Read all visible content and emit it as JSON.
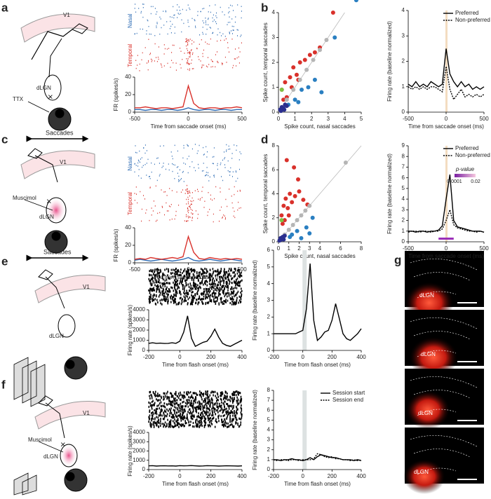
{
  "panel_labels": [
    "a",
    "b",
    "c",
    "d",
    "e",
    "f",
    "g"
  ],
  "diagram_labels": {
    "a": [
      "V1",
      "dLGN",
      "TTX",
      "Saccades"
    ],
    "c": [
      "V1",
      "Muscimol",
      "dLGN",
      "Saccades"
    ],
    "e": [
      "V1",
      "dLGN"
    ],
    "f": [
      "V1",
      "Muscimol",
      "dLGN"
    ]
  },
  "histology_labels": [
    "dLGN",
    "dLGN",
    "dLGN",
    "dLGN"
  ],
  "chart_data": [
    {
      "type": "line",
      "ylabel": "FR (spikes/s)",
      "xlabel": "Time from saccade onset (ms)",
      "annotations": [
        "Nasal",
        "Temporal"
      ],
      "x": [
        -500,
        -450,
        -400,
        -350,
        -300,
        -250,
        -200,
        -150,
        -100,
        -50,
        0,
        50,
        100,
        150,
        200,
        250,
        300,
        350,
        400,
        450,
        500
      ],
      "xlim": [
        -500,
        500
      ],
      "xticks": [
        -500,
        0,
        500
      ],
      "ylim": [
        0,
        40
      ],
      "yticks": [
        0,
        20,
        40
      ],
      "series": [
        {
          "name": "Nasal",
          "color": "#2f6db5",
          "values": [
            3,
            3,
            2,
            3,
            3,
            2,
            3,
            3,
            2,
            3,
            5,
            3,
            2,
            3,
            3,
            2,
            3,
            3,
            2,
            3,
            3
          ]
        },
        {
          "name": "Temporal",
          "color": "#d9312b",
          "values": [
            5,
            5,
            6,
            5,
            4,
            5,
            5,
            4,
            5,
            6,
            30,
            10,
            5,
            4,
            5,
            5,
            4,
            5,
            5,
            6,
            5
          ]
        }
      ]
    },
    {
      "type": "scatter",
      "xlabel": "Spike count, nasal saccades",
      "ylabel": "Spike count, temporal saccades",
      "xlim": [
        0,
        5
      ],
      "xticks": [
        0,
        1,
        2,
        3,
        4,
        5
      ],
      "ylim": [
        0,
        4
      ],
      "yticks": [
        0,
        1,
        2,
        3,
        4
      ],
      "series": [
        {
          "color": "#d9312b",
          "x": [
            0.2,
            0.4,
            0.5,
            0.7,
            0.9,
            1.1,
            1.3,
            1.6,
            1.9,
            2.2,
            2.5,
            3.3,
            0.3,
            0.8,
            1.2
          ],
          "values": [
            0.9,
            1.2,
            0.6,
            1.4,
            1.8,
            1.5,
            2.0,
            2.1,
            2.3,
            2.4,
            2.6,
            4.0,
            0.5,
            1.0,
            1.3
          ]
        },
        {
          "color": "#2a7fc1",
          "x": [
            0.6,
            1.0,
            1.4,
            1.8,
            2.2,
            2.6,
            3.4,
            4.7,
            1.2
          ],
          "values": [
            0.3,
            0.5,
            0.9,
            1.0,
            1.3,
            0.8,
            3.0,
            4.5,
            0.4
          ]
        },
        {
          "color": "#b5b5b5",
          "x": [
            0.5,
            0.9,
            1.3,
            1.7,
            2.1,
            2.5,
            2.9
          ],
          "values": [
            0.5,
            0.9,
            1.3,
            1.7,
            2.1,
            2.5,
            2.9
          ]
        },
        {
          "color": "#7cc242",
          "x": [
            0.2
          ],
          "values": [
            0.9
          ]
        },
        {
          "color": "#2b2f8f",
          "x": [
            0.1,
            0.2,
            0.3,
            0.4,
            0.5,
            0.15,
            0.35
          ],
          "values": [
            0.1,
            0.2,
            0.15,
            0.3,
            0.25,
            0.05,
            0.1
          ]
        }
      ]
    },
    {
      "type": "line",
      "ylabel": "Firing rate (baseline normalized)",
      "xlabel": "Time from saccade onset (ms)",
      "legend": "upper right",
      "x": [
        -500,
        -450,
        -400,
        -350,
        -300,
        -250,
        -200,
        -150,
        -100,
        -50,
        0,
        50,
        100,
        150,
        200,
        250,
        300,
        350,
        400,
        450,
        500
      ],
      "xlim": [
        -500,
        500
      ],
      "xticks": [
        -500,
        0,
        500
      ],
      "ylim": [
        0,
        4
      ],
      "yticks": [
        0,
        1,
        2,
        3,
        4
      ],
      "series": [
        {
          "name": "Preferred",
          "color": "#000000",
          "values": [
            1.1,
            1.0,
            1.2,
            1.0,
            1.1,
            1.0,
            1.2,
            1.1,
            1.0,
            1.1,
            2.5,
            1.5,
            1.2,
            1.0,
            1.2,
            1.0,
            1.1,
            0.9,
            1.0,
            0.9,
            1.0
          ]
        },
        {
          "name": "Non-preferred",
          "color": "#000000",
          "dash": true,
          "values": [
            1.0,
            0.9,
            1.0,
            0.9,
            1.0,
            0.9,
            1.0,
            1.0,
            0.9,
            0.8,
            1.8,
            0.9,
            0.5,
            0.7,
            0.9,
            0.6,
            0.7,
            0.6,
            0.7,
            0.6,
            0.7
          ]
        }
      ]
    },
    {
      "type": "line",
      "ylabel": "FR (spikes/s)",
      "xlabel": "Time from saccade onset (ms)",
      "annotations": [
        "Nasal",
        "Temporal"
      ],
      "x": [
        -500,
        -450,
        -400,
        -350,
        -300,
        -250,
        -200,
        -150,
        -100,
        -50,
        0,
        50,
        100,
        150,
        200,
        250,
        300,
        350,
        400,
        450,
        500
      ],
      "xlim": [
        -500,
        500
      ],
      "xticks": [
        -500,
        0,
        500
      ],
      "ylim": [
        0,
        40
      ],
      "yticks": [
        0,
        20,
        40
      ],
      "series": [
        {
          "name": "Nasal",
          "color": "#2f6db5",
          "values": [
            3,
            4,
            3,
            2,
            3,
            4,
            3,
            2,
            3,
            4,
            6,
            3,
            2,
            3,
            4,
            3,
            2,
            3,
            4,
            3,
            2
          ]
        },
        {
          "name": "Temporal",
          "color": "#d9312b",
          "values": [
            4,
            5,
            4,
            6,
            5,
            4,
            5,
            6,
            5,
            7,
            30,
            12,
            5,
            4,
            6,
            5,
            4,
            5,
            4,
            5,
            4
          ]
        }
      ]
    },
    {
      "type": "scatter",
      "xlabel": "Spike count, nasal saccades",
      "ylabel": "Spike count, temporal saccades",
      "xlim": [
        0,
        8
      ],
      "xticks": [
        0,
        1,
        2,
        3,
        4,
        6,
        8
      ],
      "ylim": [
        0,
        8
      ],
      "yticks": [
        0,
        2,
        4,
        6,
        8
      ],
      "series": [
        {
          "color": "#d9312b",
          "x": [
            0.3,
            0.5,
            0.7,
            0.9,
            1.1,
            1.3,
            1.6,
            2.0,
            2.4,
            0.4,
            0.8,
            1.5,
            1.0,
            2.8,
            1.9,
            0.6
          ],
          "values": [
            2.2,
            3.0,
            3.6,
            2.8,
            4.0,
            3.3,
            3.8,
            4.2,
            3.5,
            1.5,
            6.8,
            6.2,
            2.2,
            3.1,
            5.2,
            1.8
          ]
        },
        {
          "color": "#2a7fc1",
          "x": [
            1.3,
            1.8,
            2.2,
            2.7,
            3.0,
            3.3,
            1.1
          ],
          "values": [
            0.6,
            0.9,
            0.3,
            1.2,
            0.7,
            2.0,
            0.4
          ]
        },
        {
          "color": "#b5b5b5",
          "x": [
            0.6,
            1.0,
            1.4,
            1.8,
            2.2,
            2.6,
            3.0,
            6.5
          ],
          "values": [
            0.6,
            1.0,
            1.4,
            1.8,
            2.2,
            2.6,
            3.0,
            6.6
          ]
        },
        {
          "color": "#7cc242",
          "x": [
            0.3
          ],
          "values": [
            1.8
          ]
        },
        {
          "color": "#2b2f8f",
          "x": [
            0.1,
            0.2,
            0.3,
            0.4,
            0.5,
            0.6
          ],
          "values": [
            0.1,
            0.3,
            0.2,
            0.4,
            0.2,
            0.5
          ]
        }
      ]
    },
    {
      "type": "line",
      "ylabel": "Firing rate (baseline normalized)",
      "xlabel": "Time from saccade onset (ms)",
      "legend": "upper right",
      "colorbar": {
        "label": "p-value",
        "ticks": [
          "0.0001",
          "0.02"
        ]
      },
      "x": [
        -500,
        -450,
        -400,
        -350,
        -300,
        -250,
        -200,
        -150,
        -100,
        -50,
        0,
        50,
        100,
        150,
        200,
        250,
        300,
        350,
        400,
        450,
        500
      ],
      "xlim": [
        -500,
        500
      ],
      "xticks": [
        -500,
        0,
        500
      ],
      "ylim": [
        0,
        9
      ],
      "yticks": [
        0,
        1,
        2,
        3,
        4,
        5,
        6,
        7,
        8,
        9
      ],
      "series": [
        {
          "name": "Preferred",
          "color": "#000000",
          "values": [
            1.0,
            1.0,
            0.9,
            1.0,
            1.0,
            0.9,
            1.0,
            1.0,
            1.1,
            1.5,
            4.0,
            6.3,
            2.0,
            1.4,
            1.3,
            1.2,
            1.1,
            1.0,
            1.0,
            1.0,
            0.9
          ]
        },
        {
          "name": "Non-preferred",
          "color": "#000000",
          "dash": true,
          "values": [
            0.9,
            1.0,
            1.0,
            0.9,
            1.0,
            1.0,
            0.9,
            1.0,
            1.0,
            1.2,
            2.0,
            3.0,
            1.6,
            1.3,
            1.2,
            1.1,
            1.0,
            1.0,
            0.9,
            1.0,
            0.9
          ]
        }
      ]
    },
    {
      "type": "line",
      "ylabel": "Firing rate (spikes/s)",
      "xlabel": "Time from flash onset (ms)",
      "x": [
        -200,
        -175,
        -150,
        -125,
        -100,
        -75,
        -50,
        -25,
        0,
        25,
        50,
        75,
        100,
        125,
        150,
        175,
        200,
        225,
        250,
        275,
        300,
        325,
        350,
        375,
        400
      ],
      "xlim": [
        -200,
        400
      ],
      "xticks": [
        -200,
        0,
        200,
        400
      ],
      "ylim": [
        0,
        4000
      ],
      "yticks": [
        0,
        1000,
        2000,
        3000,
        4000
      ],
      "series": [
        {
          "name": "",
          "color": "#000000",
          "values": [
            700,
            750,
            700,
            720,
            680,
            700,
            750,
            700,
            900,
            1800,
            3400,
            1200,
            400,
            600,
            800,
            900,
            1400,
            2100,
            1300,
            700,
            500,
            400,
            600,
            800,
            1000
          ]
        }
      ]
    },
    {
      "type": "line",
      "ylabel": "Firing rate (baseline normalized)",
      "xlabel": "Time from flash onset (ms)",
      "x": [
        -200,
        -175,
        -150,
        -125,
        -100,
        -75,
        -50,
        -25,
        0,
        25,
        50,
        75,
        100,
        125,
        150,
        175,
        200,
        225,
        250,
        275,
        300,
        325,
        350,
        375,
        400
      ],
      "xlim": [
        -200,
        400
      ],
      "xticks": [
        -200,
        0,
        200,
        400
      ],
      "ylim": [
        0,
        6
      ],
      "yticks": [
        0,
        1,
        2,
        3,
        4,
        5,
        6
      ],
      "series": [
        {
          "name": "",
          "color": "#000000",
          "values": [
            1.0,
            1.0,
            1.0,
            1.0,
            1.0,
            1.0,
            1.0,
            1.1,
            1.2,
            2.5,
            5.2,
            1.8,
            0.6,
            0.8,
            1.1,
            1.2,
            1.8,
            2.8,
            1.9,
            1.0,
            0.7,
            0.6,
            0.8,
            1.0,
            1.3
          ]
        }
      ]
    },
    {
      "type": "line",
      "ylabel": "Firing rate (spikes/s)",
      "xlabel": "Time from flash onset (ms)",
      "x": [
        -200,
        -175,
        -150,
        -125,
        -100,
        -75,
        -50,
        -25,
        0,
        25,
        50,
        75,
        100,
        125,
        150,
        175,
        200,
        225,
        250,
        275,
        300,
        325,
        350,
        375,
        400
      ],
      "xlim": [
        -200,
        400
      ],
      "xticks": [
        -200,
        0,
        200,
        400
      ],
      "ylim": [
        0,
        4000
      ],
      "yticks": [
        0,
        1000,
        2000,
        3000,
        4000
      ],
      "series": [
        {
          "name": "",
          "color": "#000000",
          "values": [
            400,
            420,
            380,
            400,
            410,
            390,
            400,
            380,
            420,
            400,
            410,
            430,
            400,
            380,
            390,
            420,
            410,
            400,
            380,
            390,
            410,
            400,
            390,
            380,
            400
          ]
        }
      ]
    },
    {
      "type": "line",
      "ylabel": "Firing rate (baseline normalized)",
      "xlabel": "Time from flash onset (ms)",
      "legend": "upper right",
      "x": [
        -200,
        -175,
        -150,
        -125,
        -100,
        -75,
        -50,
        -25,
        0,
        25,
        50,
        75,
        100,
        125,
        150,
        175,
        200,
        225,
        250,
        275,
        300,
        325,
        350,
        375,
        400
      ],
      "xlim": [
        -200,
        400
      ],
      "xticks": [
        -200,
        0,
        200,
        400
      ],
      "ylim": [
        0,
        8
      ],
      "yticks": [
        0,
        1,
        2,
        3,
        4,
        5,
        6,
        7,
        8
      ],
      "series": [
        {
          "name": "Session start",
          "color": "#000000",
          "values": [
            1.0,
            1.0,
            0.9,
            1.0,
            1.0,
            1.1,
            1.0,
            1.0,
            0.9,
            1.0,
            1.2,
            1.0,
            1.3,
            1.5,
            1.4,
            1.3,
            1.2,
            1.2,
            1.1,
            1.0,
            1.0,
            1.0,
            0.9,
            1.0,
            0.9
          ]
        },
        {
          "name": "Session end",
          "color": "#000000",
          "dash": true,
          "values": [
            1.0,
            0.9,
            1.0,
            1.0,
            0.9,
            1.0,
            1.0,
            0.9,
            1.0,
            1.0,
            1.0,
            1.1,
            1.6,
            1.5,
            1.3,
            1.2,
            1.3,
            1.1,
            1.1,
            1.0,
            1.0,
            0.9,
            1.0,
            0.9,
            1.0
          ]
        }
      ]
    }
  ]
}
